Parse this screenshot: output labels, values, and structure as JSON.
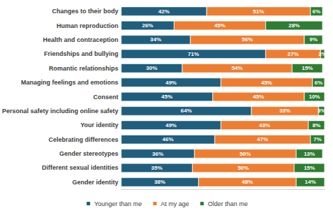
{
  "chart_data": {
    "type": "bar",
    "orientation": "horizontal",
    "stacked": true,
    "data_labels": true,
    "tick_labels": "y",
    "legend": "bottom",
    "categories": [
      "Changes to their body",
      "Human reproduction",
      "Health and contraception",
      "Friendships and bullying",
      "Romantic relationships",
      "Managing feelings and emotions",
      "Consent",
      "Personal safety including online safety",
      "Your identity",
      "Celebrating differences",
      "Gender stereotypes",
      "Different sexual identities",
      "Gender identity"
    ],
    "xlim": [
      0,
      100
    ],
    "series": [
      {
        "name": "Younger than me",
        "color": "#1f5e7c",
        "values": [
          42,
          26,
          34,
          71,
          30,
          49,
          45,
          64,
          49,
          46,
          36,
          35,
          38
        ],
        "value_labels": [
          "42%",
          "26%",
          "34%",
          "71%",
          "30%",
          "49%",
          "45%",
          "64%",
          "49%",
          "46%",
          "36%",
          "35%",
          "38%"
        ]
      },
      {
        "name": "At my age",
        "color": "#ed7d31",
        "values": [
          51,
          45,
          56,
          27,
          54,
          45,
          45,
          33,
          43,
          47,
          50,
          50,
          48
        ],
        "value_labels": [
          "51%",
          "45%",
          "56%",
          "27%",
          "54%",
          "45%",
          "45%",
          "33%",
          "43%",
          "47%",
          "50%",
          "50%",
          "48%"
        ]
      },
      {
        "name": "Older than me",
        "color": "#2e7d32",
        "values": [
          6,
          28,
          9,
          2,
          15,
          6,
          10,
          3,
          8,
          7,
          13,
          15,
          14
        ],
        "value_labels": [
          "6%",
          "28%",
          "9%",
          "2%",
          "15%",
          "6%",
          "10%",
          "3%",
          "8%",
          "7%",
          "13%",
          "15%",
          "14%"
        ]
      }
    ]
  }
}
